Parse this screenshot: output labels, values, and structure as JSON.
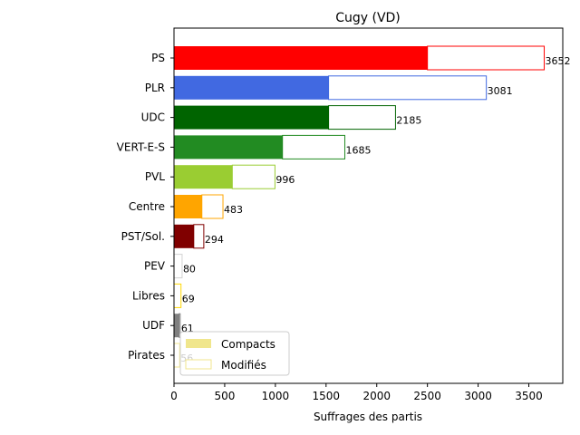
{
  "chart_data": {
    "type": "bar",
    "orientation": "horizontal",
    "title": "Cugy (VD)",
    "xlabel": "Suffrages des partis",
    "ylabel": "",
    "xlim": [
      0,
      3835
    ],
    "xticks": [
      0,
      500,
      1000,
      1500,
      2000,
      2500,
      3000,
      3500
    ],
    "categories": [
      "PS",
      "PLR",
      "UDC",
      "VERT-E-S",
      "PVL",
      "Centre",
      "PST/Sol.",
      "PEV",
      "Libres",
      "UDF",
      "Pirates"
    ],
    "series": [
      {
        "name": "Compacts",
        "values": [
          2500,
          1525,
          1525,
          1070,
          575,
          275,
          195,
          0,
          0,
          50,
          0
        ]
      },
      {
        "name": "Modifiés",
        "values": [
          1152,
          1556,
          660,
          615,
          421,
          208,
          99,
          80,
          69,
          11,
          56
        ]
      }
    ],
    "totals": [
      3652,
      3081,
      2185,
      1685,
      996,
      483,
      294,
      80,
      69,
      61,
      56
    ],
    "total_labels": [
      "3652",
      "3081",
      "2185",
      "1685",
      "996",
      "483",
      "294",
      "80",
      "69",
      "61",
      "56"
    ],
    "colors": [
      "#ff0000",
      "#4169e1",
      "#006400",
      "#228b22",
      "#9acd32",
      "#ffa500",
      "#800000",
      "#d3d3d3",
      "#ffd700",
      "#808080",
      "#f0e68c"
    ],
    "grid": false,
    "legend": {
      "position": "lower-left",
      "entries": [
        "Compacts",
        "Modifiés"
      ],
      "swatch_color": "#f0e68c"
    }
  }
}
